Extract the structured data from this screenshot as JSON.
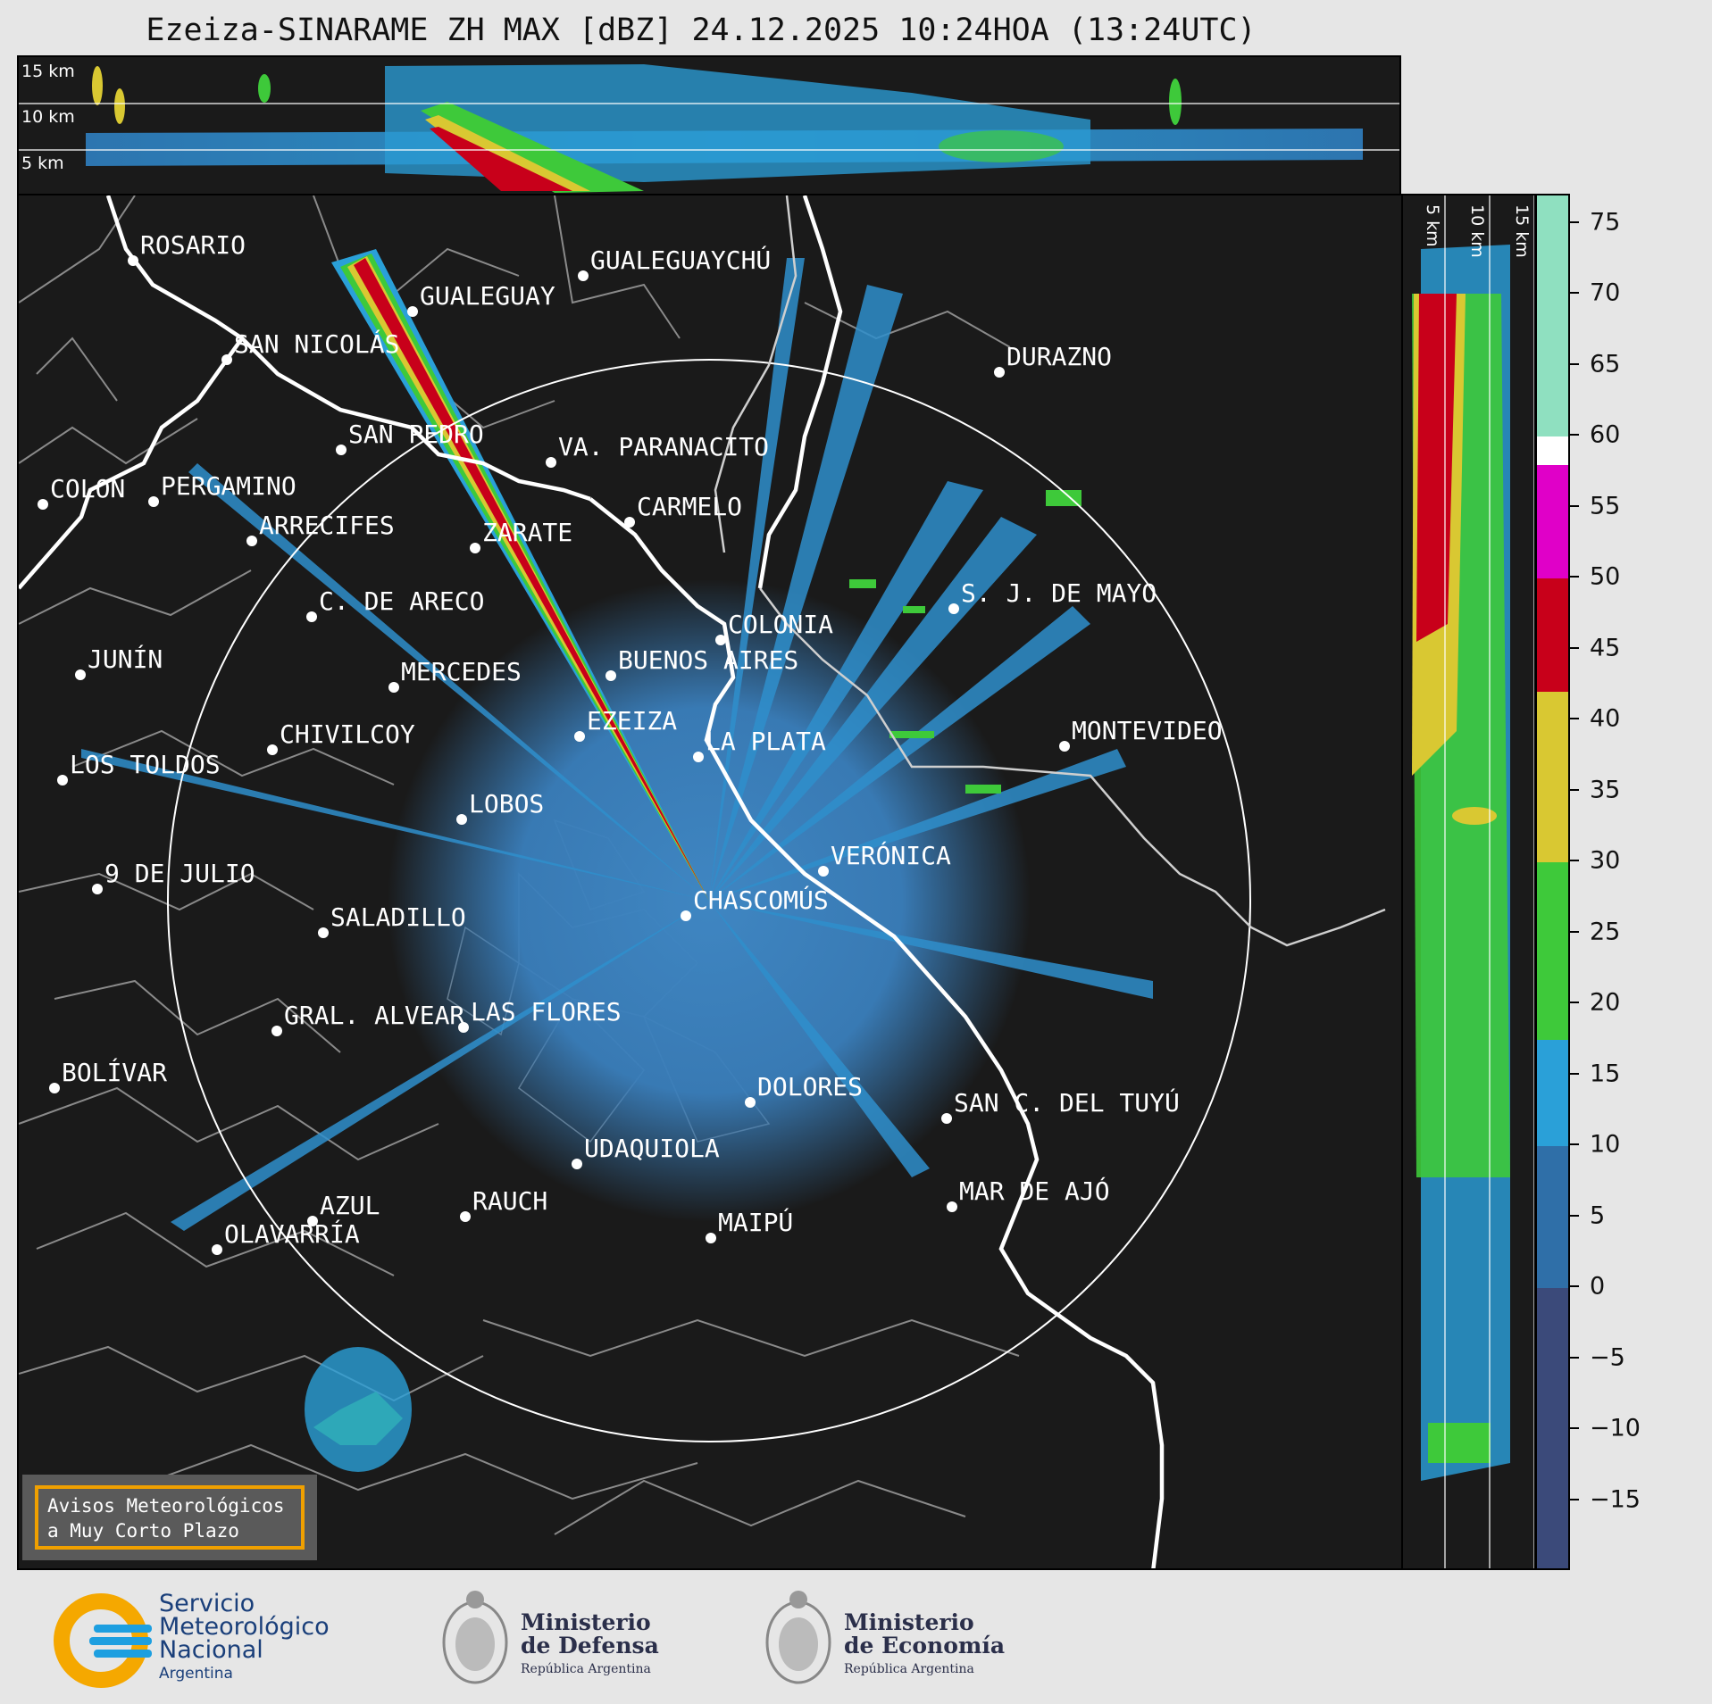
{
  "title": "Ezeiza-SINARAME ZH MAX [dBZ] 24.12.2025 10:24HOA (13:24UTC)",
  "height_labels": {
    "h15": "15 km",
    "h10": "10 km",
    "h5": "5 km"
  },
  "cities": [
    {
      "name": "ROSARIO"
    },
    {
      "name": "GUALEGUAYCHÚ"
    },
    {
      "name": "GUALEGUAY"
    },
    {
      "name": "SAN NICOLÁS"
    },
    {
      "name": "DURAZNO"
    },
    {
      "name": "SAN PEDRO"
    },
    {
      "name": "VA. PARANACITO"
    },
    {
      "name": "COLON"
    },
    {
      "name": "PERGAMINO"
    },
    {
      "name": "CARMELO"
    },
    {
      "name": "ARRECIFES"
    },
    {
      "name": "ZARATE"
    },
    {
      "name": "S. J. DE MAYO"
    },
    {
      "name": "C. DE ARECO"
    },
    {
      "name": "COLONIA"
    },
    {
      "name": "JUNÍN"
    },
    {
      "name": "BUENOS AIRES"
    },
    {
      "name": "MERCEDES"
    },
    {
      "name": "EZEIZA"
    },
    {
      "name": "MONTEVIDEO"
    },
    {
      "name": "CHIVILCOY"
    },
    {
      "name": "LA PLATA"
    },
    {
      "name": "LOS TOLDOS"
    },
    {
      "name": "LOBOS"
    },
    {
      "name": "VERÓNICA"
    },
    {
      "name": "9 DE JULIO"
    },
    {
      "name": "CHASCOMÚS"
    },
    {
      "name": "SALADILLO"
    },
    {
      "name": "GRAL. ALVEAR"
    },
    {
      "name": "LAS FLORES"
    },
    {
      "name": "BOLÍVAR"
    },
    {
      "name": "DOLORES"
    },
    {
      "name": "SAN C. DEL TUYÚ"
    },
    {
      "name": "UDAQUIOLA"
    },
    {
      "name": "MAR DE AJÓ"
    },
    {
      "name": "RAUCH"
    },
    {
      "name": "AZUL"
    },
    {
      "name": "MAIPÚ"
    },
    {
      "name": "OLAVARRÍA"
    }
  ],
  "colorbar": {
    "ticks": [
      "75",
      "70",
      "65",
      "60",
      "55",
      "50",
      "45",
      "40",
      "35",
      "30",
      "25",
      "20",
      "15",
      "10",
      "5",
      "0",
      "−5",
      "−10",
      "−15"
    ],
    "range": [
      -20,
      77
    ],
    "stops": [
      {
        "from": -20,
        "to": 0,
        "color": "#3b4a7a"
      },
      {
        "from": 0,
        "to": 10,
        "color": "#2f6fa8"
      },
      {
        "from": 10,
        "to": 17.5,
        "color": "#2aa0d8"
      },
      {
        "from": 17.5,
        "to": 30,
        "color": "#3ec93a"
      },
      {
        "from": 30,
        "to": 42,
        "color": "#d9c832"
      },
      {
        "from": 42,
        "to": 50,
        "color": "#c8001a"
      },
      {
        "from": 50,
        "to": 58,
        "color": "#e000c8"
      },
      {
        "from": 58,
        "to": 60,
        "color": "#ffffff"
      },
      {
        "from": 60,
        "to": 77,
        "color": "#8fe0c0"
      }
    ]
  },
  "notice": {
    "line1": "Avisos Meteorológicos",
    "line2": "a Muy Corto Plazo"
  },
  "footer": {
    "smn_l1": "Servicio",
    "smn_l2": "Meteorológico",
    "smn_l3": "Nacional",
    "smn_l4": "Argentina",
    "def_l1": "Ministerio",
    "def_l2": "de Defensa",
    "def_l3": "República Argentina",
    "eco_l1": "Ministerio",
    "eco_l2": "de Economía",
    "eco_l3": "República Argentina"
  },
  "colors": {
    "accent": "#f0a000",
    "smn_blue": "#1d9fe0",
    "smn_orange": "#f5a800"
  }
}
